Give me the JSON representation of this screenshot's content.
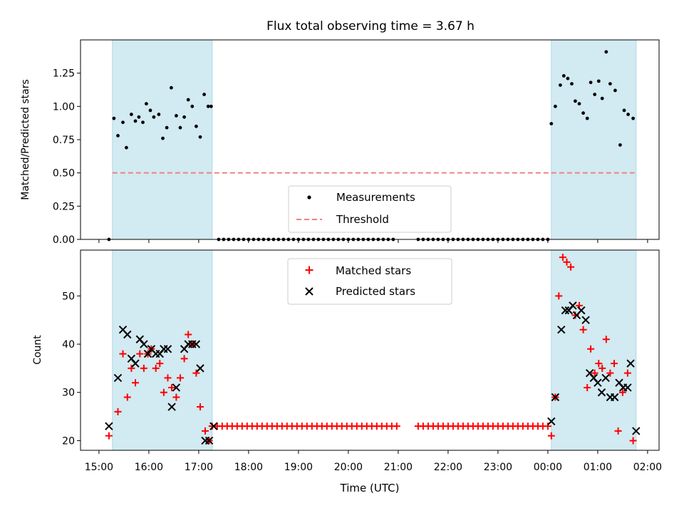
{
  "figure_title": "Flux total observing time = 3.67 h",
  "xlabel": "Time (UTC)",
  "x_tick_labels": [
    "15:00",
    "16:00",
    "17:00",
    "18:00",
    "19:00",
    "20:00",
    "21:00",
    "22:00",
    "23:00",
    "00:00",
    "01:00",
    "02:00"
  ],
  "colors": {
    "measurement": "#000000",
    "threshold": "#f08080",
    "matched": "#ff0000",
    "predicted": "#000000",
    "shade": "#add8e6"
  },
  "chart_data": [
    {
      "type": "scatter",
      "panel": "top",
      "ylabel": "Matched/Predicted stars",
      "x_unit": "hours since 15:00 UTC",
      "xlim": [
        -0.37,
        11.23
      ],
      "ylim": [
        0,
        1.5
      ],
      "y_ticks": [
        0,
        0.25,
        0.5,
        0.75,
        1.0,
        1.25
      ],
      "y_tick_labels": [
        "0.00",
        "0.25",
        "0.50",
        "0.75",
        "1.00",
        "1.25"
      ],
      "shaded_intervals": [
        [
          0.27,
          2.27
        ],
        [
          9.07,
          10.77
        ]
      ],
      "legend": {
        "position": "lower center",
        "entries": [
          "Measurements",
          "Threshold"
        ]
      },
      "threshold": {
        "name": "Threshold",
        "value": 0.5,
        "x_range": [
          0.27,
          10.77
        ]
      },
      "series": [
        {
          "name": "Measurements",
          "points": [
            [
              0.2,
              0.0
            ],
            [
              0.3,
              0.91
            ],
            [
              0.38,
              0.78
            ],
            [
              0.48,
              0.88
            ],
            [
              0.55,
              0.69
            ],
            [
              0.65,
              0.94
            ],
            [
              0.73,
              0.89
            ],
            [
              0.8,
              0.92
            ],
            [
              0.88,
              0.88
            ],
            [
              0.95,
              1.02
            ],
            [
              1.03,
              0.97
            ],
            [
              1.1,
              0.92
            ],
            [
              1.2,
              0.94
            ],
            [
              1.28,
              0.76
            ],
            [
              1.36,
              0.84
            ],
            [
              1.45,
              1.14
            ],
            [
              1.55,
              0.93
            ],
            [
              1.63,
              0.84
            ],
            [
              1.71,
              0.92
            ],
            [
              1.79,
              1.05
            ],
            [
              1.87,
              1.0
            ],
            [
              1.95,
              0.85
            ],
            [
              2.03,
              0.77
            ],
            [
              2.11,
              1.09
            ],
            [
              2.19,
              1.0
            ],
            [
              2.25,
              1.0
            ],
            [
              2.4,
              0.0
            ],
            [
              2.5,
              0.0
            ],
            [
              2.6,
              0.0
            ],
            [
              2.7,
              0.0
            ],
            [
              2.8,
              0.0
            ],
            [
              2.9,
              0.0
            ],
            [
              3.0,
              0.0
            ],
            [
              3.1,
              0.0
            ],
            [
              3.2,
              0.0
            ],
            [
              3.3,
              0.0
            ],
            [
              3.4,
              0.0
            ],
            [
              3.5,
              0.0
            ],
            [
              3.6,
              0.0
            ],
            [
              3.7,
              0.0
            ],
            [
              3.8,
              0.0
            ],
            [
              3.9,
              0.0
            ],
            [
              4.0,
              0.0
            ],
            [
              4.1,
              0.0
            ],
            [
              4.2,
              0.0
            ],
            [
              4.3,
              0.0
            ],
            [
              4.4,
              0.0
            ],
            [
              4.5,
              0.0
            ],
            [
              4.6,
              0.0
            ],
            [
              4.7,
              0.0
            ],
            [
              4.8,
              0.0
            ],
            [
              4.9,
              0.0
            ],
            [
              5.0,
              0.0
            ],
            [
              5.1,
              0.0
            ],
            [
              5.2,
              0.0
            ],
            [
              5.3,
              0.0
            ],
            [
              5.4,
              0.0
            ],
            [
              5.5,
              0.0
            ],
            [
              5.6,
              0.0
            ],
            [
              5.7,
              0.0
            ],
            [
              5.8,
              0.0
            ],
            [
              5.9,
              0.0
            ],
            [
              6.4,
              0.0
            ],
            [
              6.5,
              0.0
            ],
            [
              6.6,
              0.0
            ],
            [
              6.7,
              0.0
            ],
            [
              6.8,
              0.0
            ],
            [
              6.9,
              0.0
            ],
            [
              7.0,
              0.0
            ],
            [
              7.1,
              0.0
            ],
            [
              7.2,
              0.0
            ],
            [
              7.3,
              0.0
            ],
            [
              7.4,
              0.0
            ],
            [
              7.5,
              0.0
            ],
            [
              7.6,
              0.0
            ],
            [
              7.7,
              0.0
            ],
            [
              7.8,
              0.0
            ],
            [
              7.9,
              0.0
            ],
            [
              8.0,
              0.0
            ],
            [
              8.1,
              0.0
            ],
            [
              8.2,
              0.0
            ],
            [
              8.3,
              0.0
            ],
            [
              8.4,
              0.0
            ],
            [
              8.5,
              0.0
            ],
            [
              8.6,
              0.0
            ],
            [
              8.7,
              0.0
            ],
            [
              8.8,
              0.0
            ],
            [
              8.9,
              0.0
            ],
            [
              9.0,
              0.0
            ],
            [
              9.07,
              0.87
            ],
            [
              9.15,
              1.0
            ],
            [
              9.25,
              1.16
            ],
            [
              9.32,
              1.23
            ],
            [
              9.4,
              1.21
            ],
            [
              9.48,
              1.17
            ],
            [
              9.55,
              1.04
            ],
            [
              9.63,
              1.02
            ],
            [
              9.71,
              0.95
            ],
            [
              9.79,
              0.91
            ],
            [
              9.86,
              1.18
            ],
            [
              9.94,
              1.09
            ],
            [
              10.02,
              1.19
            ],
            [
              10.09,
              1.06
            ],
            [
              10.17,
              1.41
            ],
            [
              10.25,
              1.17
            ],
            [
              10.35,
              1.12
            ],
            [
              10.45,
              0.71
            ],
            [
              10.53,
              0.97
            ],
            [
              10.61,
              0.94
            ],
            [
              10.71,
              0.91
            ]
          ]
        }
      ]
    },
    {
      "type": "scatter",
      "panel": "bottom",
      "ylabel": "Count",
      "xlabel": "Time (UTC)",
      "x_unit": "hours since 15:00 UTC",
      "xlim": [
        -0.37,
        11.23
      ],
      "ylim": [
        18.0,
        59.5
      ],
      "y_ticks": [
        20,
        30,
        40,
        50
      ],
      "y_tick_labels": [
        "20",
        "30",
        "40",
        "50"
      ],
      "shaded_intervals": [
        [
          0.27,
          2.27
        ],
        [
          9.07,
          10.77
        ]
      ],
      "legend": {
        "position": "upper center",
        "entries": [
          "Matched stars",
          "Predicted stars"
        ]
      },
      "series": [
        {
          "name": "Matched stars",
          "marker": "+",
          "points": [
            [
              0.2,
              21
            ],
            [
              0.38,
              26
            ],
            [
              0.48,
              38
            ],
            [
              0.57,
              29
            ],
            [
              0.65,
              35
            ],
            [
              0.73,
              32
            ],
            [
              0.82,
              38
            ],
            [
              0.9,
              35
            ],
            [
              0.98,
              38
            ],
            [
              1.05,
              39
            ],
            [
              1.14,
              35
            ],
            [
              1.22,
              36
            ],
            [
              1.3,
              30
            ],
            [
              1.38,
              33
            ],
            [
              1.46,
              31
            ],
            [
              1.55,
              29
            ],
            [
              1.63,
              33
            ],
            [
              1.71,
              37
            ],
            [
              1.79,
              42
            ],
            [
              1.87,
              40
            ],
            [
              1.95,
              34
            ],
            [
              2.03,
              27
            ],
            [
              2.13,
              22
            ],
            [
              2.21,
              20
            ],
            [
              2.27,
              23
            ],
            [
              2.37,
              23
            ],
            [
              2.47,
              23
            ],
            [
              2.57,
              23
            ],
            [
              2.67,
              23
            ],
            [
              2.77,
              23
            ],
            [
              2.87,
              23
            ],
            [
              2.97,
              23
            ],
            [
              3.07,
              23
            ],
            [
              3.17,
              23
            ],
            [
              3.27,
              23
            ],
            [
              3.37,
              23
            ],
            [
              3.47,
              23
            ],
            [
              3.57,
              23
            ],
            [
              3.67,
              23
            ],
            [
              3.77,
              23
            ],
            [
              3.87,
              23
            ],
            [
              3.97,
              23
            ],
            [
              4.07,
              23
            ],
            [
              4.17,
              23
            ],
            [
              4.27,
              23
            ],
            [
              4.37,
              23
            ],
            [
              4.47,
              23
            ],
            [
              4.57,
              23
            ],
            [
              4.67,
              23
            ],
            [
              4.77,
              23
            ],
            [
              4.87,
              23
            ],
            [
              4.97,
              23
            ],
            [
              5.07,
              23
            ],
            [
              5.17,
              23
            ],
            [
              5.27,
              23
            ],
            [
              5.37,
              23
            ],
            [
              5.47,
              23
            ],
            [
              5.57,
              23
            ],
            [
              5.67,
              23
            ],
            [
              5.77,
              23
            ],
            [
              5.87,
              23
            ],
            [
              5.97,
              23
            ],
            [
              6.4,
              23
            ],
            [
              6.5,
              23
            ],
            [
              6.6,
              23
            ],
            [
              6.7,
              23
            ],
            [
              6.8,
              23
            ],
            [
              6.9,
              23
            ],
            [
              7.0,
              23
            ],
            [
              7.1,
              23
            ],
            [
              7.2,
              23
            ],
            [
              7.3,
              23
            ],
            [
              7.4,
              23
            ],
            [
              7.5,
              23
            ],
            [
              7.6,
              23
            ],
            [
              7.7,
              23
            ],
            [
              7.8,
              23
            ],
            [
              7.9,
              23
            ],
            [
              8.0,
              23
            ],
            [
              8.1,
              23
            ],
            [
              8.2,
              23
            ],
            [
              8.3,
              23
            ],
            [
              8.4,
              23
            ],
            [
              8.5,
              23
            ],
            [
              8.6,
              23
            ],
            [
              8.7,
              23
            ],
            [
              8.8,
              23
            ],
            [
              8.9,
              23
            ],
            [
              9.0,
              23
            ],
            [
              9.07,
              21
            ],
            [
              9.15,
              29
            ],
            [
              9.22,
              50
            ],
            [
              9.3,
              58
            ],
            [
              9.38,
              57
            ],
            [
              9.46,
              56
            ],
            [
              9.55,
              46
            ],
            [
              9.63,
              48
            ],
            [
              9.71,
              43
            ],
            [
              9.79,
              31
            ],
            [
              9.86,
              39
            ],
            [
              9.94,
              34
            ],
            [
              10.02,
              36
            ],
            [
              10.09,
              35
            ],
            [
              10.17,
              41
            ],
            [
              10.25,
              34
            ],
            [
              10.33,
              36
            ],
            [
              10.41,
              22
            ],
            [
              10.5,
              30
            ],
            [
              10.6,
              34
            ],
            [
              10.71,
              20
            ]
          ]
        },
        {
          "name": "Predicted stars",
          "marker": "x",
          "points": [
            [
              0.2,
              23
            ],
            [
              0.38,
              33
            ],
            [
              0.48,
              43
            ],
            [
              0.57,
              42
            ],
            [
              0.65,
              37
            ],
            [
              0.73,
              36
            ],
            [
              0.82,
              41
            ],
            [
              0.9,
              40
            ],
            [
              0.98,
              38
            ],
            [
              1.05,
              39
            ],
            [
              1.14,
              38
            ],
            [
              1.22,
              38
            ],
            [
              1.3,
              39
            ],
            [
              1.38,
              39
            ],
            [
              1.46,
              27
            ],
            [
              1.55,
              31
            ],
            [
              1.71,
              39
            ],
            [
              1.79,
              40
            ],
            [
              1.87,
              40
            ],
            [
              1.95,
              40
            ],
            [
              2.03,
              35
            ],
            [
              2.13,
              20
            ],
            [
              2.21,
              20
            ],
            [
              2.3,
              23
            ],
            [
              9.07,
              24
            ],
            [
              9.15,
              29
            ],
            [
              9.27,
              43
            ],
            [
              9.35,
              47
            ],
            [
              9.42,
              47
            ],
            [
              9.5,
              48
            ],
            [
              9.58,
              46
            ],
            [
              9.67,
              47
            ],
            [
              9.76,
              45
            ],
            [
              9.84,
              34
            ],
            [
              9.92,
              33
            ],
            [
              10.0,
              32
            ],
            [
              10.08,
              30
            ],
            [
              10.16,
              33
            ],
            [
              10.25,
              29
            ],
            [
              10.34,
              29
            ],
            [
              10.43,
              32
            ],
            [
              10.51,
              31
            ],
            [
              10.6,
              31
            ],
            [
              10.66,
              36
            ],
            [
              10.77,
              22
            ]
          ]
        }
      ]
    }
  ]
}
